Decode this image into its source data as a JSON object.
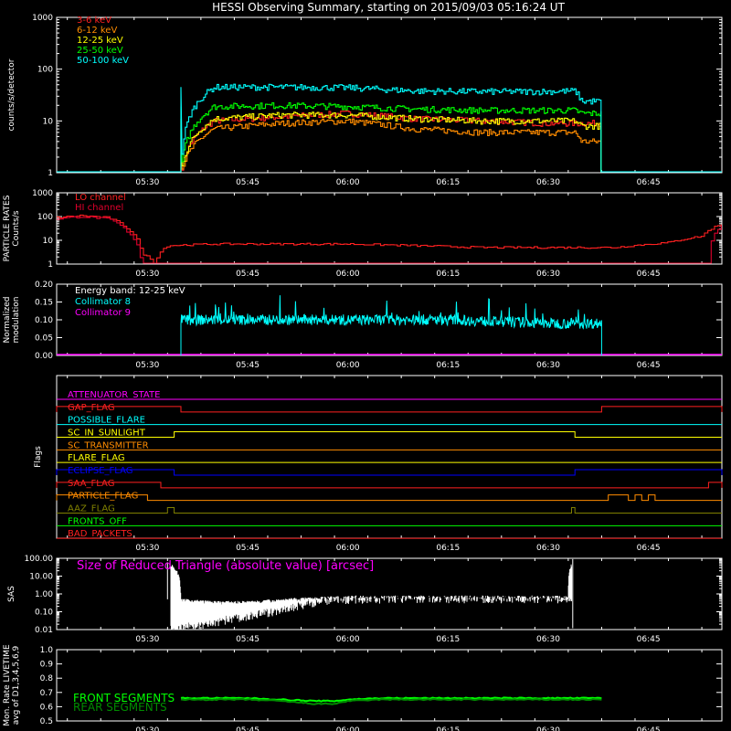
{
  "title": "HESSI Observing Summary, starting on 2015/09/03 05:16:24 UT",
  "time_ticks": [
    "05:30",
    "05:45",
    "06:00",
    "06:15",
    "06:30",
    "06:45"
  ],
  "chart_data": [
    {
      "type": "line",
      "ylabel": "counts/s/detector",
      "yscale": "log",
      "ylim": [
        1,
        1000
      ],
      "yticks": [
        "1",
        "10",
        "100",
        "1000"
      ],
      "x_unit": "UT",
      "x_range": [
        "05:16:24",
        "06:56"
      ],
      "series": [
        {
          "name": "3-6 keV",
          "color": "#ff2020",
          "x": [
            "05:35",
            "05:40",
            "05:50",
            "06:00",
            "06:10",
            "06:20",
            "06:30",
            "06:34",
            "06:35",
            "06:38"
          ],
          "y": [
            1,
            10,
            12,
            14,
            11,
            10,
            9,
            9,
            9,
            9
          ],
          "baseline_y": 1
        },
        {
          "name": "6-12 keV",
          "color": "#ff8c00",
          "x": [
            "05:35",
            "05:40",
            "05:50",
            "06:00",
            "06:10",
            "06:20",
            "06:30",
            "06:34",
            "06:35",
            "06:38"
          ],
          "y": [
            1,
            7,
            9,
            10,
            7,
            6,
            6,
            6,
            4,
            4
          ],
          "baseline_y": 1
        },
        {
          "name": "12-25 keV",
          "color": "#ffff00",
          "x": [
            "05:35",
            "05:40",
            "05:50",
            "06:00",
            "06:10",
            "06:20",
            "06:30",
            "06:34",
            "06:35",
            "06:38"
          ],
          "y": [
            1,
            11,
            13,
            13,
            11,
            10,
            10,
            10,
            8,
            8
          ],
          "baseline_y": 1
        },
        {
          "name": "25-50 keV",
          "color": "#00ff00",
          "x": [
            "05:35",
            "05:40",
            "05:50",
            "06:00",
            "06:10",
            "06:20",
            "06:30",
            "06:34",
            "06:35",
            "06:38"
          ],
          "y": [
            1,
            19,
            20,
            19,
            17,
            16,
            16,
            16,
            14,
            14
          ],
          "baseline_y": 1
        },
        {
          "name": "50-100 keV",
          "color": "#00ffff",
          "x": [
            "05:35",
            "05:40",
            "05:50",
            "06:00",
            "06:10",
            "06:20",
            "06:30",
            "06:34",
            "06:35",
            "06:38"
          ],
          "y": [
            1,
            45,
            45,
            44,
            38,
            37,
            37,
            38,
            24,
            24
          ],
          "baseline_y": 1
        }
      ]
    },
    {
      "type": "line",
      "ylabel": "PARTICLE RATES\nCounts/s",
      "yscale": "log",
      "ylim": [
        1,
        1000
      ],
      "yticks": [
        "1",
        "10",
        "100",
        "1000"
      ],
      "series": [
        {
          "name": "LO channel",
          "color": "#ff2020",
          "x": [
            "05:16:24",
            "05:20",
            "05:24",
            "05:27",
            "05:29",
            "05:31",
            "05:33",
            "05:40",
            "05:50",
            "06:00",
            "06:10",
            "06:20",
            "06:30",
            "06:40",
            "06:48",
            "06:53",
            "06:56"
          ],
          "y": [
            90,
            110,
            90,
            30,
            3,
            1,
            6,
            7,
            7,
            7,
            6,
            5,
            5,
            5,
            8,
            15,
            50
          ]
        },
        {
          "name": "HI channel",
          "color": "#e0002c",
          "x": [
            "05:16:24",
            "05:20",
            "05:24",
            "05:27",
            "05:29",
            "05:56",
            "06:54",
            "06:56"
          ],
          "y": [
            80,
            100,
            80,
            20,
            1,
            1,
            1,
            40
          ]
        }
      ]
    },
    {
      "type": "line",
      "ylabel": "Normalized\nmodulation",
      "ylim": [
        0,
        0.2
      ],
      "yticks": [
        "0.00",
        "0.05",
        "0.10",
        "0.15",
        "0.20"
      ],
      "annotation": "Energy band: 12-25 keV",
      "series": [
        {
          "name": "Collimator 8",
          "color": "#00ffff",
          "x": [
            "05:35",
            "05:45",
            "06:00",
            "06:15",
            "06:30",
            "06:38"
          ],
          "y": [
            0.1,
            0.1,
            0.1,
            0.1,
            0.09,
            0.09
          ],
          "y_range_noise": [
            0.07,
            0.17
          ]
        },
        {
          "name": "Collimator 9",
          "color": "#ff00ff",
          "x": [
            "05:16:24",
            "06:56"
          ],
          "y": [
            0.0,
            0.0
          ]
        }
      ]
    },
    {
      "type": "table",
      "ylabel": "Flags",
      "flags": [
        {
          "name": "ATTENUATOR_STATE",
          "color": "#ff00ff",
          "on": []
        },
        {
          "name": "GAP_FLAG",
          "color": "#ff2020",
          "on": [
            [
              "05:16:24",
              "05:35"
            ],
            [
              "06:38",
              "06:56"
            ]
          ]
        },
        {
          "name": "POSSIBLE_FLARE",
          "color": "#00ffff",
          "on": []
        },
        {
          "name": "SC_IN_SUNLIGHT",
          "color": "#ffff00",
          "on": [
            [
              "05:34",
              "06:34"
            ]
          ]
        },
        {
          "name": "SC_TRANSMITTER",
          "color": "#ff8c00",
          "on": []
        },
        {
          "name": "FLARE_FLAG",
          "color": "#ffff00",
          "on": []
        },
        {
          "name": "ECLIPSE_FLAG",
          "color": "#0000ff",
          "on": [
            [
              "05:16:24",
              "05:34"
            ],
            [
              "06:34",
              "06:56"
            ]
          ]
        },
        {
          "name": "SAA_FLAG",
          "color": "#ff2020",
          "on": [
            [
              "05:16:24",
              "05:32"
            ],
            [
              "06:54",
              "06:56"
            ]
          ]
        },
        {
          "name": "PARTICLE_FLAG",
          "color": "#ff8c00",
          "on": [
            [
              "05:16:24",
              "05:30"
            ],
            [
              "06:39",
              "06:42"
            ],
            [
              "06:43",
              "06:44"
            ],
            [
              "06:45",
              "06:46"
            ]
          ]
        },
        {
          "name": "AAZ_FLAG",
          "color": "#808000",
          "on": [
            [
              "05:33",
              "05:34"
            ],
            [
              "06:33:30",
              "06:34"
            ]
          ]
        },
        {
          "name": "FRONTS_OFF",
          "color": "#00ff00",
          "on": []
        },
        {
          "name": "BAD_PACKETS",
          "color": "#ff2020",
          "on": []
        }
      ]
    },
    {
      "type": "line",
      "ylabel": "SAS",
      "yscale": "log",
      "ylim": [
        0.01,
        100
      ],
      "yticks": [
        "0.01",
        "0.10",
        "1.00",
        "10.00",
        "100.00"
      ],
      "annotation": "Size of Reduced Triangle (absolute value) [arcsec]",
      "annotation_color": "#ff00ff",
      "series": [
        {
          "name": "SAS",
          "color": "#ffffff",
          "x": [
            "05:33",
            "05:35",
            "05:40",
            "05:45",
            "05:50",
            "05:55",
            "06:00",
            "06:15",
            "06:30",
            "06:33",
            "06:34"
          ],
          "y": [
            50,
            0.4,
            0.3,
            0.3,
            0.4,
            0.5,
            0.6,
            0.6,
            0.6,
            0.6,
            80
          ],
          "low_envelope": [
            0.01,
            0.01,
            0.02,
            0.05,
            0.1,
            0.3,
            0.45,
            0.5,
            0.5,
            0.5,
            0.01
          ]
        }
      ]
    },
    {
      "type": "line",
      "ylabel": "Mon. Rate LIVETIME\navg of D1,3,4,5,6,9",
      "ylim": [
        0.5,
        1.0
      ],
      "yticks": [
        "0.5",
        "0.6",
        "0.7",
        "0.8",
        "0.9",
        "1.0"
      ],
      "series": [
        {
          "name": "FRONT SEGMENTS",
          "color": "#00ff00",
          "x": [
            "05:35",
            "05:45",
            "05:50",
            "05:55",
            "05:58",
            "06:00",
            "06:05",
            "06:15",
            "06:30",
            "06:38"
          ],
          "y": [
            0.66,
            0.66,
            0.65,
            0.64,
            0.64,
            0.65,
            0.66,
            0.66,
            0.66,
            0.66
          ]
        },
        {
          "name": "REAR SEGMENTS",
          "color": "#008c00",
          "x": [
            "05:35",
            "05:45",
            "05:50",
            "05:55",
            "05:58",
            "06:00",
            "06:05",
            "06:15",
            "06:30",
            "06:38"
          ],
          "y": [
            0.65,
            0.65,
            0.64,
            0.62,
            0.62,
            0.64,
            0.65,
            0.65,
            0.65,
            0.65
          ]
        }
      ]
    }
  ]
}
